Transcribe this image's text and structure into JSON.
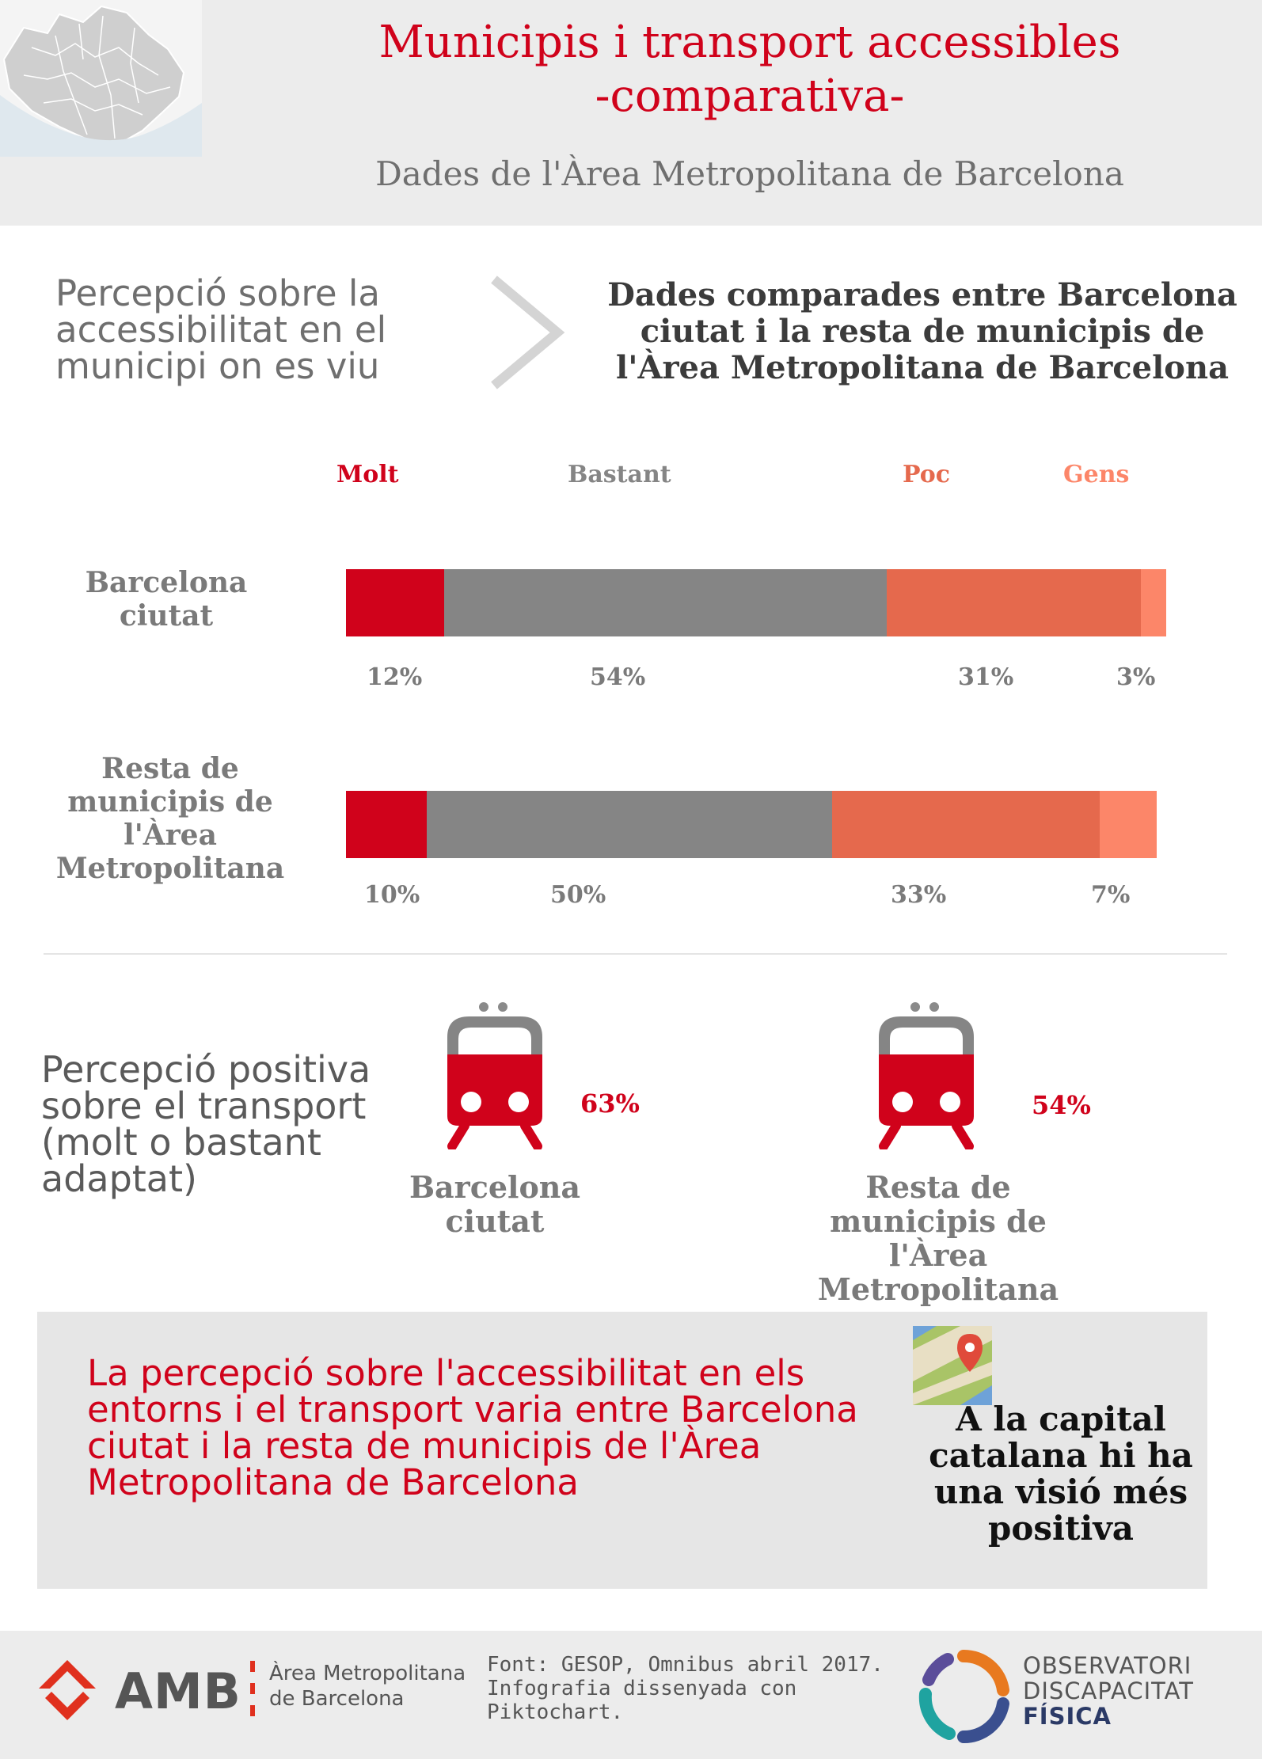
{
  "header": {
    "title_line1": "Municipis i transport accessibles",
    "title_line2": "-comparativa-",
    "subtitle": "Dades de l'Àrea Metropolitana de Barcelona"
  },
  "intro": {
    "left_text": "Percepció sobre la accessibilitat en el municipi on es viu",
    "right_text": "Dades comparades entre Barcelona ciutat i la resta de municipis de l'Àrea Metropolitana de Barcelona"
  },
  "chart_data": {
    "type": "bar",
    "orientation": "horizontal-stacked",
    "categories": [
      "Barcelona ciutat",
      "Resta de municipis de l'Àrea Metropolitana"
    ],
    "series": [
      {
        "name": "Molt",
        "color": "#d0021b",
        "values": [
          12,
          10
        ],
        "labels": [
          "12%",
          "10%"
        ]
      },
      {
        "name": "Bastant",
        "color": "#858585",
        "values": [
          54,
          50
        ],
        "labels": [
          "54%",
          "50%"
        ]
      },
      {
        "name": "Poc",
        "color": "#e5694d",
        "values": [
          31,
          33
        ],
        "labels": [
          "31%",
          "33%"
        ]
      },
      {
        "name": "Gens",
        "color": "#fc8669",
        "values": [
          3,
          7
        ],
        "labels": [
          "3%",
          "7%"
        ]
      }
    ],
    "legend": "top",
    "grid": false
  },
  "transport": {
    "heading": "Percepció positiva sobre el transport (molt o bastant adaptat)",
    "items": [
      {
        "label": "Barcelona ciutat",
        "value": "63%"
      },
      {
        "label": "Resta de municipis de l'Àrea Metropolitana",
        "value": "54%"
      }
    ]
  },
  "conclusion": {
    "text": "La percepció sobre l'accessibilitat en els entorns i el transport varia entre Barcelona ciutat i la resta de municipis de l'Àrea Metropolitana de Barcelona",
    "highlight": "A la capital catalana hi ha una visió més positiva"
  },
  "footer": {
    "amb_logo": "AMB",
    "amb_name_line1": "Àrea Metropolitana",
    "amb_name_line2": "de Barcelona",
    "source": "Font: GESOP, Omnibus abril 2017. Infografia dissenyada con Piktochart.",
    "observatori_line1": "OBSERVATORI",
    "observatori_line2": "DISCAPACITAT",
    "observatori_line3": "FÍSICA"
  },
  "colors": {
    "accent": "#d0021b",
    "text_gray": "#7a7a7a",
    "panel": "#ececec"
  }
}
